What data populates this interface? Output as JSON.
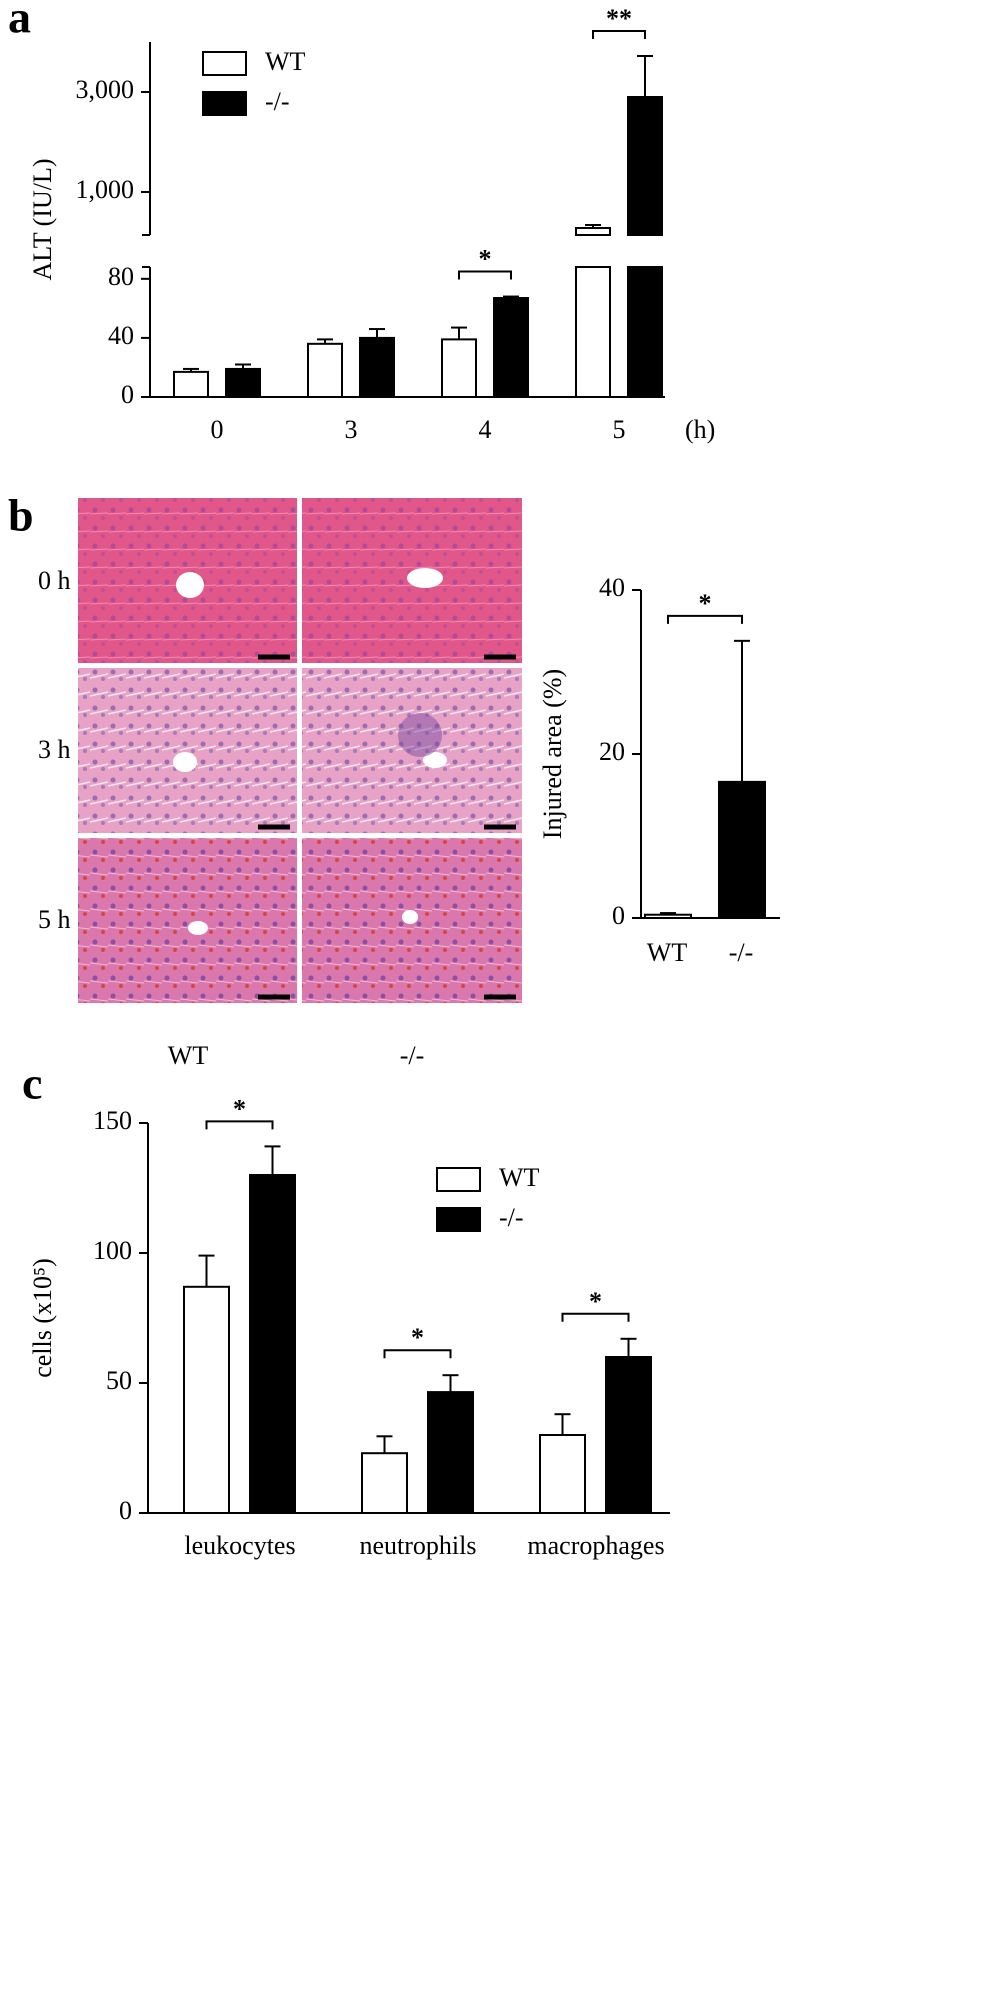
{
  "chart_data": [
    {
      "panel": "a",
      "type": "bar",
      "y_label": "ALT (IU/L)",
      "x_unit": "(h)",
      "categories": [
        "0",
        "3",
        "4",
        "5"
      ],
      "series": [
        {
          "name": "WT",
          "color": "#ffffff",
          "values": [
            17,
            36,
            39,
            280
          ],
          "errors": [
            2,
            3,
            8,
            60
          ]
        },
        {
          "name": "-/-",
          "color": "#000000",
          "values": [
            19,
            40,
            67,
            2900
          ],
          "errors": [
            3,
            6,
            1,
            820
          ]
        }
      ],
      "segments": [
        {
          "ylim": [
            0,
            88
          ],
          "yticks": [
            0,
            40,
            80
          ]
        },
        {
          "ylim": [
            140,
            4000
          ],
          "yticks": [
            {
              "value": 1000,
              "label": "1,000"
            },
            {
              "value": 3000,
              "label": "3,000"
            }
          ]
        }
      ],
      "significance": [
        {
          "category": 2,
          "label": "*"
        },
        {
          "category": 3,
          "label": "**"
        }
      ],
      "legend": "upper left"
    },
    {
      "panel": "b",
      "type": "bar",
      "y_label": "Injured area (%)",
      "categories": [
        "WT",
        "-/-"
      ],
      "values": [
        0.4,
        16.6
      ],
      "errors": [
        0.2,
        17.2
      ],
      "colors": [
        "#ffffff",
        "#000000"
      ],
      "ylim": [
        0,
        40
      ],
      "yticks": [
        0,
        20,
        40
      ],
      "significance": [
        {
          "label": "*"
        }
      ]
    },
    {
      "panel": "c",
      "type": "bar",
      "y_label": "cells (x10⁵)",
      "categories": [
        "leukocytes",
        "neutrophils",
        "macrophages"
      ],
      "series": [
        {
          "name": "WT",
          "color": "#ffffff",
          "values": [
            87,
            23,
            30
          ],
          "errors": [
            12,
            6.5,
            8
          ]
        },
        {
          "name": "-/-",
          "color": "#000000",
          "values": [
            130,
            46.5,
            60
          ],
          "errors": [
            11,
            6.5,
            7
          ]
        }
      ],
      "ylim": [
        0,
        150
      ],
      "yticks": [
        0,
        50,
        100,
        150
      ],
      "significance": [
        {
          "category": 0,
          "label": "*"
        },
        {
          "category": 1,
          "label": "*"
        },
        {
          "category": 2,
          "label": "*"
        }
      ],
      "legend": "upper right"
    }
  ],
  "micrographs": {
    "row_labels": [
      "0 h",
      "3 h",
      "5 h"
    ],
    "column_labels": [
      "WT",
      "-/-"
    ]
  }
}
